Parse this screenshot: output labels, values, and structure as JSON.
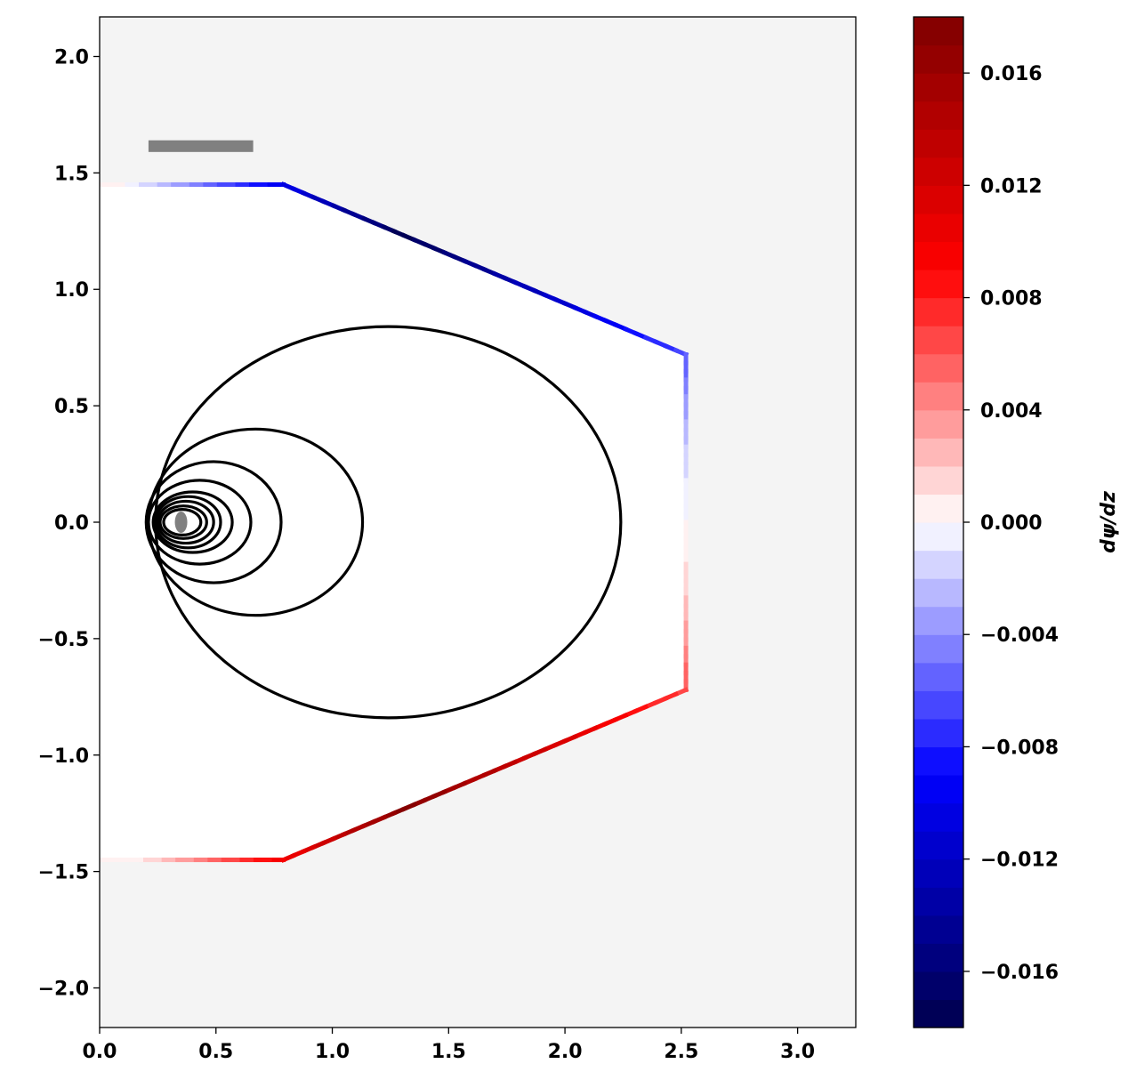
{
  "chart_data": {
    "type": "line",
    "title": "",
    "xlabel": "",
    "ylabel": "",
    "xlim": [
      0,
      3.25
    ],
    "ylim": [
      -2.17,
      2.17
    ],
    "xticks": [
      0.0,
      0.5,
      1.0,
      1.5,
      2.0,
      2.5,
      3.0
    ],
    "xtick_labels": [
      "0.0",
      "0.5",
      "1.0",
      "1.5",
      "2.0",
      "2.5",
      "3.0"
    ],
    "yticks": [
      2.0,
      1.5,
      1.0,
      0.5,
      0.0,
      -0.5,
      -1.0,
      -1.5,
      -2.0
    ],
    "ytick_labels": [
      "2.0",
      "1.5",
      "1.0",
      "0.5",
      "0.0",
      "−0.5",
      "−1.0",
      "−1.5",
      "−2.0"
    ],
    "grid": false,
    "background_color": "#f4f4f4",
    "plasma_fill_color": "#ffffff",
    "vessel_wall": {
      "points": [
        [
          0.0,
          1.45
        ],
        [
          0.79,
          1.45
        ],
        [
          2.52,
          0.72
        ],
        [
          2.52,
          -0.72
        ],
        [
          0.79,
          -1.45
        ],
        [
          0.0,
          -1.45
        ]
      ],
      "colored_by": "dpsi/dz"
    },
    "flux_surfaces": [
      {
        "center_r": 1.24,
        "center_z": 0.0,
        "half_width": 1.0,
        "half_height": 0.84
      },
      {
        "center_r": 0.67,
        "center_z": 0.0,
        "half_width": 0.46,
        "half_height": 0.4
      },
      {
        "center_r": 0.49,
        "center_z": 0.0,
        "half_width": 0.29,
        "half_height": 0.26
      },
      {
        "center_r": 0.43,
        "center_z": 0.0,
        "half_width": 0.22,
        "half_height": 0.18
      },
      {
        "center_r": 0.4,
        "center_z": 0.0,
        "half_width": 0.17,
        "half_height": 0.13
      },
      {
        "center_r": 0.38,
        "center_z": 0.0,
        "half_width": 0.14,
        "half_height": 0.11
      },
      {
        "center_r": 0.37,
        "center_z": 0.0,
        "half_width": 0.12,
        "half_height": 0.09
      },
      {
        "center_r": 0.36,
        "center_z": 0.0,
        "half_width": 0.1,
        "half_height": 0.07
      },
      {
        "center_r": 0.355,
        "center_z": 0.0,
        "half_width": 0.08,
        "half_height": 0.055
      }
    ],
    "magnetic_axis": {
      "r": 0.35,
      "z": 0.0,
      "color": "#808080"
    },
    "coil": {
      "r_min": 0.21,
      "r_max": 0.66,
      "z_min": 1.59,
      "z_max": 1.64,
      "color": "#808080"
    },
    "colorbar": {
      "label": "dψ/dz",
      "colormap": "seismic",
      "vmin": -0.018,
      "vmax": 0.018,
      "levels": 36,
      "ticks": [
        0.016,
        0.012,
        0.008,
        0.004,
        0.0,
        -0.004,
        -0.008,
        -0.012,
        -0.016
      ],
      "tick_labels": [
        "0.016",
        "0.012",
        "0.008",
        "0.004",
        "0.000",
        "−0.004",
        "−0.008",
        "−0.012",
        "−0.016"
      ]
    }
  }
}
